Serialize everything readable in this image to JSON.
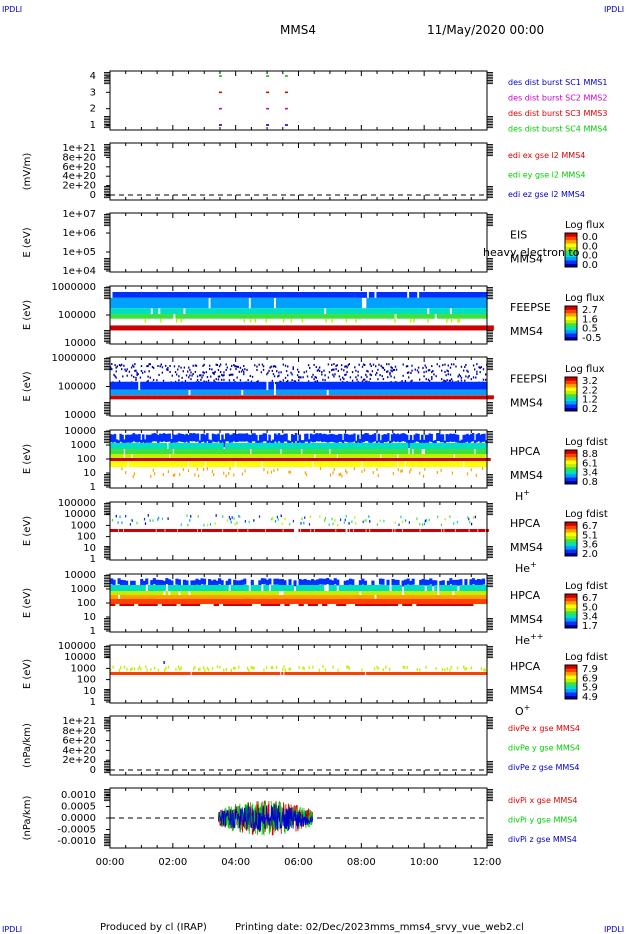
{
  "corner_labels": {
    "top_left": "IPDLI",
    "top_right": "IPDLI",
    "bottom_left": "IPDLI",
    "bottom_right": "IPDLI"
  },
  "header": {
    "title": "MMS4",
    "date": "11/May/2020 00:00"
  },
  "footer": {
    "produced_by": "Produced by cl (IRAP)",
    "printing_date": "Printing date: 02/Dec/2023",
    "filename": "mms_mms4_srvy_vue_web2.cl"
  },
  "colors": {
    "blue": "#0000cc",
    "magenta": "#cc00cc",
    "red": "#dd0000",
    "green": "#00cc00",
    "spectrogram_scale": [
      "#0000a0",
      "#0030ff",
      "#00a0ff",
      "#00e0c0",
      "#40e040",
      "#c0f000",
      "#ffff00",
      "#ffa000",
      "#ff4000",
      "#d00000"
    ]
  },
  "time_axis": {
    "range_hours": [
      0,
      12
    ],
    "ticks": [
      "00:00",
      "02:00",
      "04:00",
      "06:00",
      "08:00",
      "10:00",
      "12:00"
    ]
  },
  "chart_data": [
    {
      "id": "burst",
      "type": "scatter",
      "yticks": [
        "4",
        "3",
        "2",
        "1"
      ],
      "legend": [
        {
          "label": "des dist burst SC1 MMS1",
          "color": "#0000cc"
        },
        {
          "label": "des dist burst SC2 MMS2",
          "color": "#cc00cc"
        },
        {
          "label": "des dist burst SC3 MMS3",
          "color": "#dd0000"
        },
        {
          "label": "des dist burst SC4 MMS4",
          "color": "#00cc00"
        }
      ],
      "series": [
        {
          "y": 4,
          "color": "#00cc00",
          "t": [
            3.5,
            5.0,
            5.6
          ]
        },
        {
          "y": 3,
          "color": "#dd0000",
          "t": [
            3.5,
            5.0,
            5.6
          ]
        },
        {
          "y": 2,
          "color": "#cc00cc",
          "t": [
            3.5,
            5.0,
            5.6
          ]
        },
        {
          "y": 1,
          "color": "#0000cc",
          "t": [
            3.5,
            5.0,
            5.6
          ]
        }
      ]
    },
    {
      "id": "edi",
      "type": "line",
      "ylabel": "(mV/m)",
      "yticks": [
        "1e+21",
        "8e+20",
        "6e+20",
        "4e+20",
        "2e+20",
        "0"
      ],
      "legend": [
        {
          "label": "edi ex gse l2 MMS4",
          "color": "#dd0000"
        },
        {
          "label": "edi ey gse l2 MMS4",
          "color": "#00cc00"
        },
        {
          "label": "edi ez gse l2 MMS4",
          "color": "#0000cc"
        }
      ]
    },
    {
      "id": "eis",
      "type": "heatmap",
      "ylabel": "E (eV)",
      "yticks": [
        "1e+07",
        "1e+06",
        "1e+05",
        "1e+04"
      ],
      "instrument": "EIS",
      "spacecraft": "MMS4",
      "overlay_text": "heavy electron to",
      "colorbar_title": "Log flux",
      "colorbar_ticks": [
        "0.0",
        "0.0",
        "0.0",
        "0.0"
      ]
    },
    {
      "id": "feepse",
      "type": "heatmap",
      "ylabel": "E (eV)",
      "yticks": [
        "1000000",
        "100000",
        "10000"
      ],
      "instrument": "FEEPSE",
      "spacecraft": "MMS4",
      "colorbar_title": "Log flux",
      "colorbar_ticks": [
        "2.7",
        "1.6",
        "0.5",
        "-0.5"
      ]
    },
    {
      "id": "feepsi",
      "type": "heatmap",
      "ylabel": "E (eV)",
      "yticks": [
        "1000000",
        "100000",
        "10000"
      ],
      "instrument": "FEEPSI",
      "spacecraft": "MMS4",
      "colorbar_title": "Log flux",
      "colorbar_ticks": [
        "3.2",
        "2.2",
        "1.2",
        "0.2"
      ]
    },
    {
      "id": "hpca_h",
      "type": "heatmap",
      "ylabel": "E (eV)",
      "yticks": [
        "10000",
        "1000",
        "100",
        "10",
        "1"
      ],
      "instrument": "HPCA",
      "spacecraft": "MMS4",
      "species": "H",
      "charge": "+",
      "colorbar_title": "Log fdist",
      "colorbar_ticks": [
        "8.8",
        "6.1",
        "3.4",
        "0.8"
      ]
    },
    {
      "id": "hpca_he1",
      "type": "heatmap",
      "ylabel": "E (eV)",
      "yticks": [
        "100000",
        "10000",
        "1000",
        "100",
        "10",
        "1"
      ],
      "instrument": "HPCA",
      "spacecraft": "MMS4",
      "species": "He",
      "charge": "+",
      "colorbar_title": "Log fdist",
      "colorbar_ticks": [
        "6.7",
        "5.1",
        "3.6",
        "2.0"
      ]
    },
    {
      "id": "hpca_he2",
      "type": "heatmap",
      "ylabel": "E (eV)",
      "yticks": [
        "10000",
        "1000",
        "100",
        "10",
        "1"
      ],
      "instrument": "HPCA",
      "spacecraft": "MMS4",
      "species": "He",
      "charge": "++",
      "colorbar_title": "Log fdist",
      "colorbar_ticks": [
        "6.7",
        "5.0",
        "3.4",
        "1.7"
      ]
    },
    {
      "id": "hpca_o",
      "type": "heatmap",
      "ylabel": "E (eV)",
      "yticks": [
        "100000",
        "10000",
        "1000",
        "100",
        "10",
        "1"
      ],
      "instrument": "HPCA",
      "spacecraft": "MMS4",
      "species": "O",
      "charge": "+",
      "colorbar_title": "Log fdist",
      "colorbar_ticks": [
        "7.9",
        "6.9",
        "5.9",
        "4.9"
      ]
    },
    {
      "id": "divpe",
      "type": "line",
      "ylabel": "(nPa/km)",
      "yticks": [
        "1e+21",
        "8e+20",
        "6e+20",
        "4e+20",
        "2e+20",
        "0"
      ],
      "legend": [
        {
          "label": "divPe x gse MMS4",
          "color": "#dd0000"
        },
        {
          "label": "divPe y gse MMS4",
          "color": "#00cc00"
        },
        {
          "label": "divPe z gse MMS4",
          "color": "#0000cc"
        }
      ]
    },
    {
      "id": "divpi",
      "type": "line",
      "ylabel": "(nPa/km)",
      "yticks": [
        "0.0010",
        "0.0005",
        "0.0000",
        "-0.0005",
        "-0.0010"
      ],
      "ylim": [
        -0.0012,
        0.0012
      ],
      "active_range_hours": [
        3.45,
        6.45
      ],
      "legend": [
        {
          "label": "divPi x gse MMS4",
          "color": "#dd0000"
        },
        {
          "label": "divPi y gse MMS4",
          "color": "#00cc00"
        },
        {
          "label": "divPi z gse MMS4",
          "color": "#0000cc"
        }
      ]
    }
  ]
}
